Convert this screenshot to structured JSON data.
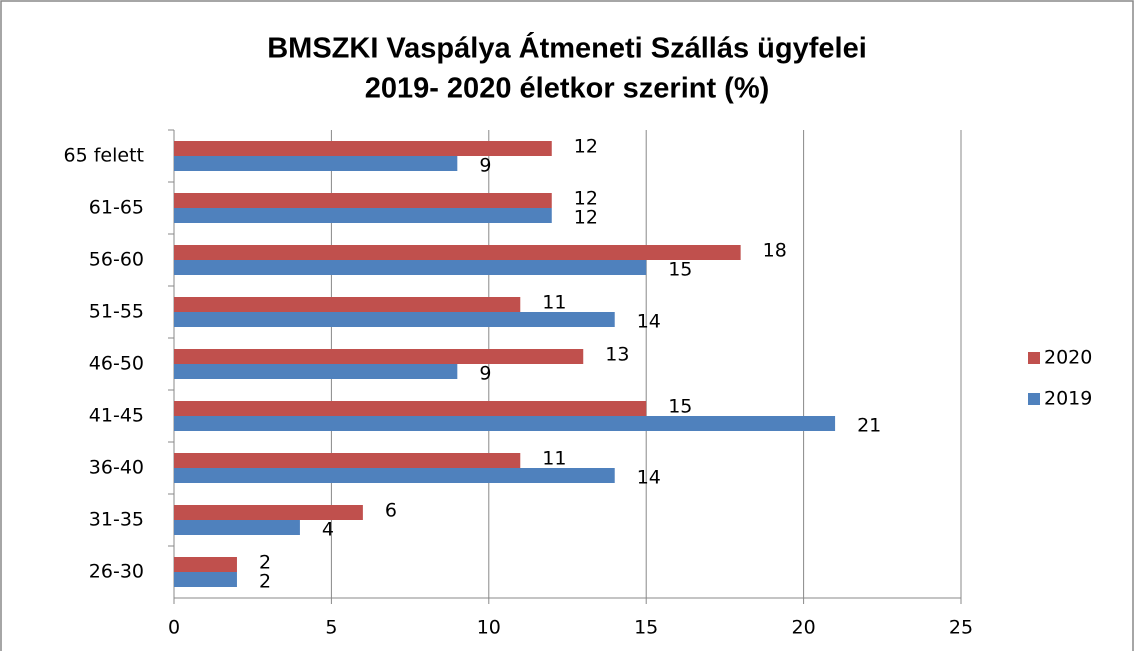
{
  "chart_data": {
    "type": "barh",
    "title": [
      "BMSZKI Vaspálya Átmeneti Szállás ügyfelei",
      "2019- 2020  életkor szerint  (%)"
    ],
    "categories": [
      "65 felett",
      "61-65",
      "56-60",
      "51-55",
      "46-50",
      "41-45",
      "36-40",
      "31-35",
      "26-30"
    ],
    "series": [
      {
        "name": "2020",
        "color": "#c0504d",
        "values": [
          12,
          12,
          18,
          11,
          13,
          15,
          11,
          6,
          2
        ]
      },
      {
        "name": "2019",
        "color": "#4f81bd",
        "values": [
          9,
          12,
          15,
          14,
          9,
          21,
          14,
          4,
          2
        ]
      }
    ],
    "xlim": [
      0,
      25
    ],
    "xticks": [
      0,
      5,
      10,
      15,
      20,
      25
    ],
    "grid": true,
    "legend": "right"
  }
}
